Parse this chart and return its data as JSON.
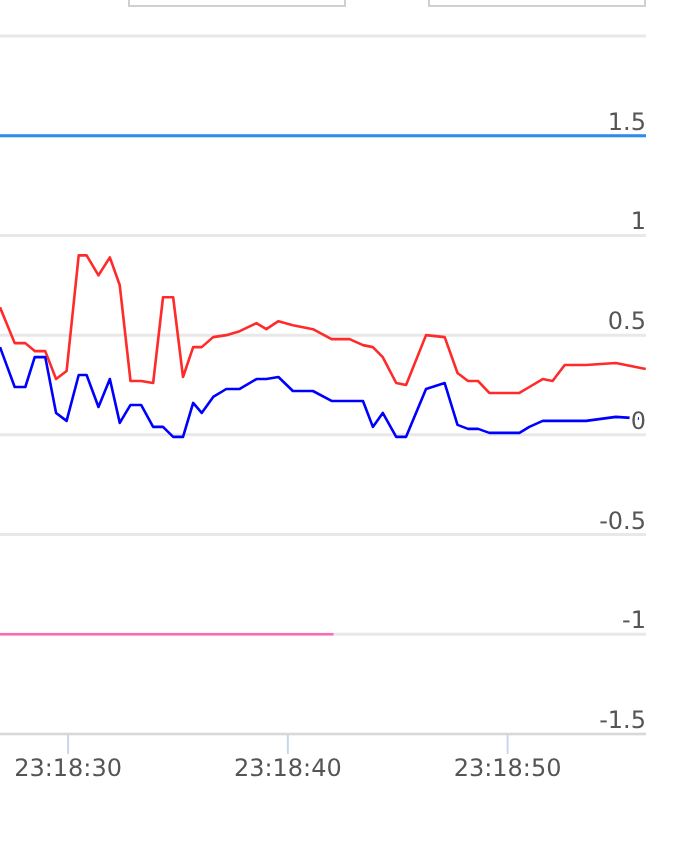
{
  "chart_data": {
    "type": "line",
    "xlim": [
      23.307472,
      23.315639
    ],
    "ylim": [
      -1.5,
      2
    ],
    "xticks": [
      {
        "value": 23.308333,
        "label": "23:18:30"
      },
      {
        "value": 23.311111,
        "label": "23:18:40"
      },
      {
        "value": 23.313889,
        "label": "23:18:50"
      }
    ],
    "yticks": [
      -1.5,
      -1,
      -0.5,
      0,
      0.5,
      1,
      1.5,
      {
        "value": 2,
        "label": null
      }
    ],
    "grid": "y",
    "marker": "none",
    "line_style": "solid",
    "ref_lines": [
      {
        "axis": "y",
        "value": 1.5,
        "color": "#2a8cf0"
      }
    ],
    "series": [
      {
        "color": "#ff2a2a",
        "x": [
          23.307472,
          23.307658,
          23.307792,
          23.307911,
          23.308044,
          23.308181,
          23.308314,
          23.308467,
          23.308567,
          23.308717,
          23.308861,
          23.308986,
          23.309122,
          23.309256,
          23.309408,
          23.309533,
          23.309661,
          23.309786,
          23.309914,
          23.310022,
          23.310167,
          23.310333,
          23.310503,
          23.310714,
          23.310839,
          23.310992,
          23.311175,
          23.311428,
          23.311664,
          23.311892,
          23.312061,
          23.312186,
          23.312311,
          23.312481,
          23.312606,
          23.312858,
          23.313094,
          23.313256,
          23.313389,
          23.313517,
          23.313658,
          23.313828,
          23.314039,
          23.314164,
          23.314333,
          23.314458,
          23.314611,
          23.314881,
          23.315258,
          23.315636
        ],
        "values": [
          0.64,
          0.46,
          0.46,
          0.42,
          0.42,
          0.28,
          0.32,
          0.9,
          0.9,
          0.8,
          0.89,
          0.75,
          0.27,
          0.27,
          0.26,
          0.69,
          0.69,
          0.29,
          0.44,
          0.44,
          0.49,
          0.5,
          0.52,
          0.56,
          0.53,
          0.57,
          0.55,
          0.53,
          0.48,
          0.48,
          0.45,
          0.44,
          0.39,
          0.26,
          0.25,
          0.5,
          0.49,
          0.31,
          0.27,
          0.27,
          0.21,
          0.21,
          0.21,
          0.24,
          0.28,
          0.27,
          0.35,
          0.35,
          0.36,
          0.33
        ]
      },
      {
        "color": "#0000ff",
        "x": [
          23.307472,
          23.307658,
          23.307792,
          23.307911,
          23.308044,
          23.308181,
          23.308314,
          23.308467,
          23.308567,
          23.308717,
          23.308861,
          23.308986,
          23.309122,
          23.309256,
          23.309408,
          23.309533,
          23.309661,
          23.309786,
          23.309914,
          23.310022,
          23.310167,
          23.310333,
          23.310503,
          23.310714,
          23.310839,
          23.310992,
          23.311175,
          23.311428,
          23.311664,
          23.311892,
          23.312061,
          23.312186,
          23.312311,
          23.312481,
          23.312606,
          23.312858,
          23.313094,
          23.313256,
          23.313389,
          23.313517,
          23.313658,
          23.313828,
          23.314039,
          23.314164,
          23.314333,
          23.314458,
          23.314611,
          23.314881,
          23.315258,
          23.315636
        ],
        "values": [
          0.44,
          0.24,
          0.24,
          0.39,
          0.39,
          0.11,
          0.07,
          0.3,
          0.3,
          0.14,
          0.28,
          0.06,
          0.15,
          0.15,
          0.04,
          0.04,
          -0.01,
          -0.01,
          0.16,
          0.11,
          0.19,
          0.23,
          0.23,
          0.28,
          0.28,
          0.29,
          0.22,
          0.22,
          0.17,
          0.17,
          0.17,
          0.04,
          0.11,
          -0.01,
          -0.01,
          0.23,
          0.26,
          0.05,
          0.03,
          0.03,
          0.01,
          0.01,
          0.01,
          0.04,
          0.07,
          0.07,
          0.07,
          0.07,
          0.09,
          0.08
        ]
      },
      {
        "color": "#ff69b4",
        "x": [
          23.307472,
          23.311689
        ],
        "values": [
          -1,
          -1
        ]
      }
    ]
  }
}
